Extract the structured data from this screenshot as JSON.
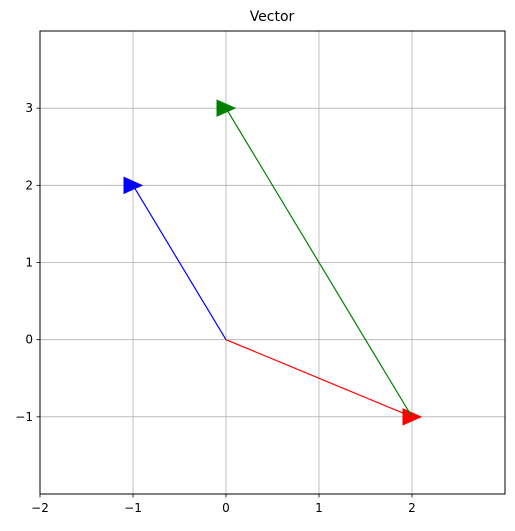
{
  "chart_data": {
    "type": "vector",
    "title": "Vector",
    "xlabel": "",
    "ylabel": "",
    "xlim": [
      -2,
      3
    ],
    "ylim": [
      -2,
      4
    ],
    "xticks": [
      -2,
      -1,
      0,
      1,
      2
    ],
    "yticks": [
      -1,
      0,
      1,
      2,
      3
    ],
    "xtick_labels": [
      "−2",
      "−1",
      "0",
      "1",
      "2"
    ],
    "ytick_labels": [
      "−1",
      "0",
      "1",
      "2",
      "3"
    ],
    "grid": true,
    "series": [
      {
        "from": [
          0,
          0
        ],
        "to": [
          -1,
          2
        ],
        "color": "#0000ff"
      },
      {
        "from": [
          0,
          0
        ],
        "to": [
          2,
          -1
        ],
        "color": "#ff0000"
      },
      {
        "from": [
          2,
          -1
        ],
        "to": [
          0,
          3
        ],
        "color": "#008000"
      }
    ]
  }
}
